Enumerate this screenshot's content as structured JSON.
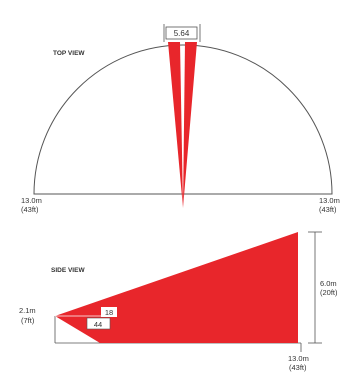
{
  "colors": {
    "zone_fill": "#e8262b",
    "outline": "#555555",
    "text": "#333333"
  },
  "top_view": {
    "heading": "TOP VIEW",
    "gap_label": "5.64",
    "left_range": {
      "metric": "13.0m",
      "imperial": "(43ft)"
    },
    "right_range": {
      "metric": "13.0m",
      "imperial": "(43ft)"
    }
  },
  "side_view": {
    "heading": "SIDE VIEW",
    "mount_height": {
      "metric": "2.1m",
      "imperial": "(7ft)"
    },
    "far_height": {
      "metric": "6.0m",
      "imperial": "(20ft)"
    },
    "range": {
      "metric": "13.0m",
      "imperial": "(43ft)"
    },
    "upper_angle": "18",
    "lower_angle": "44"
  }
}
